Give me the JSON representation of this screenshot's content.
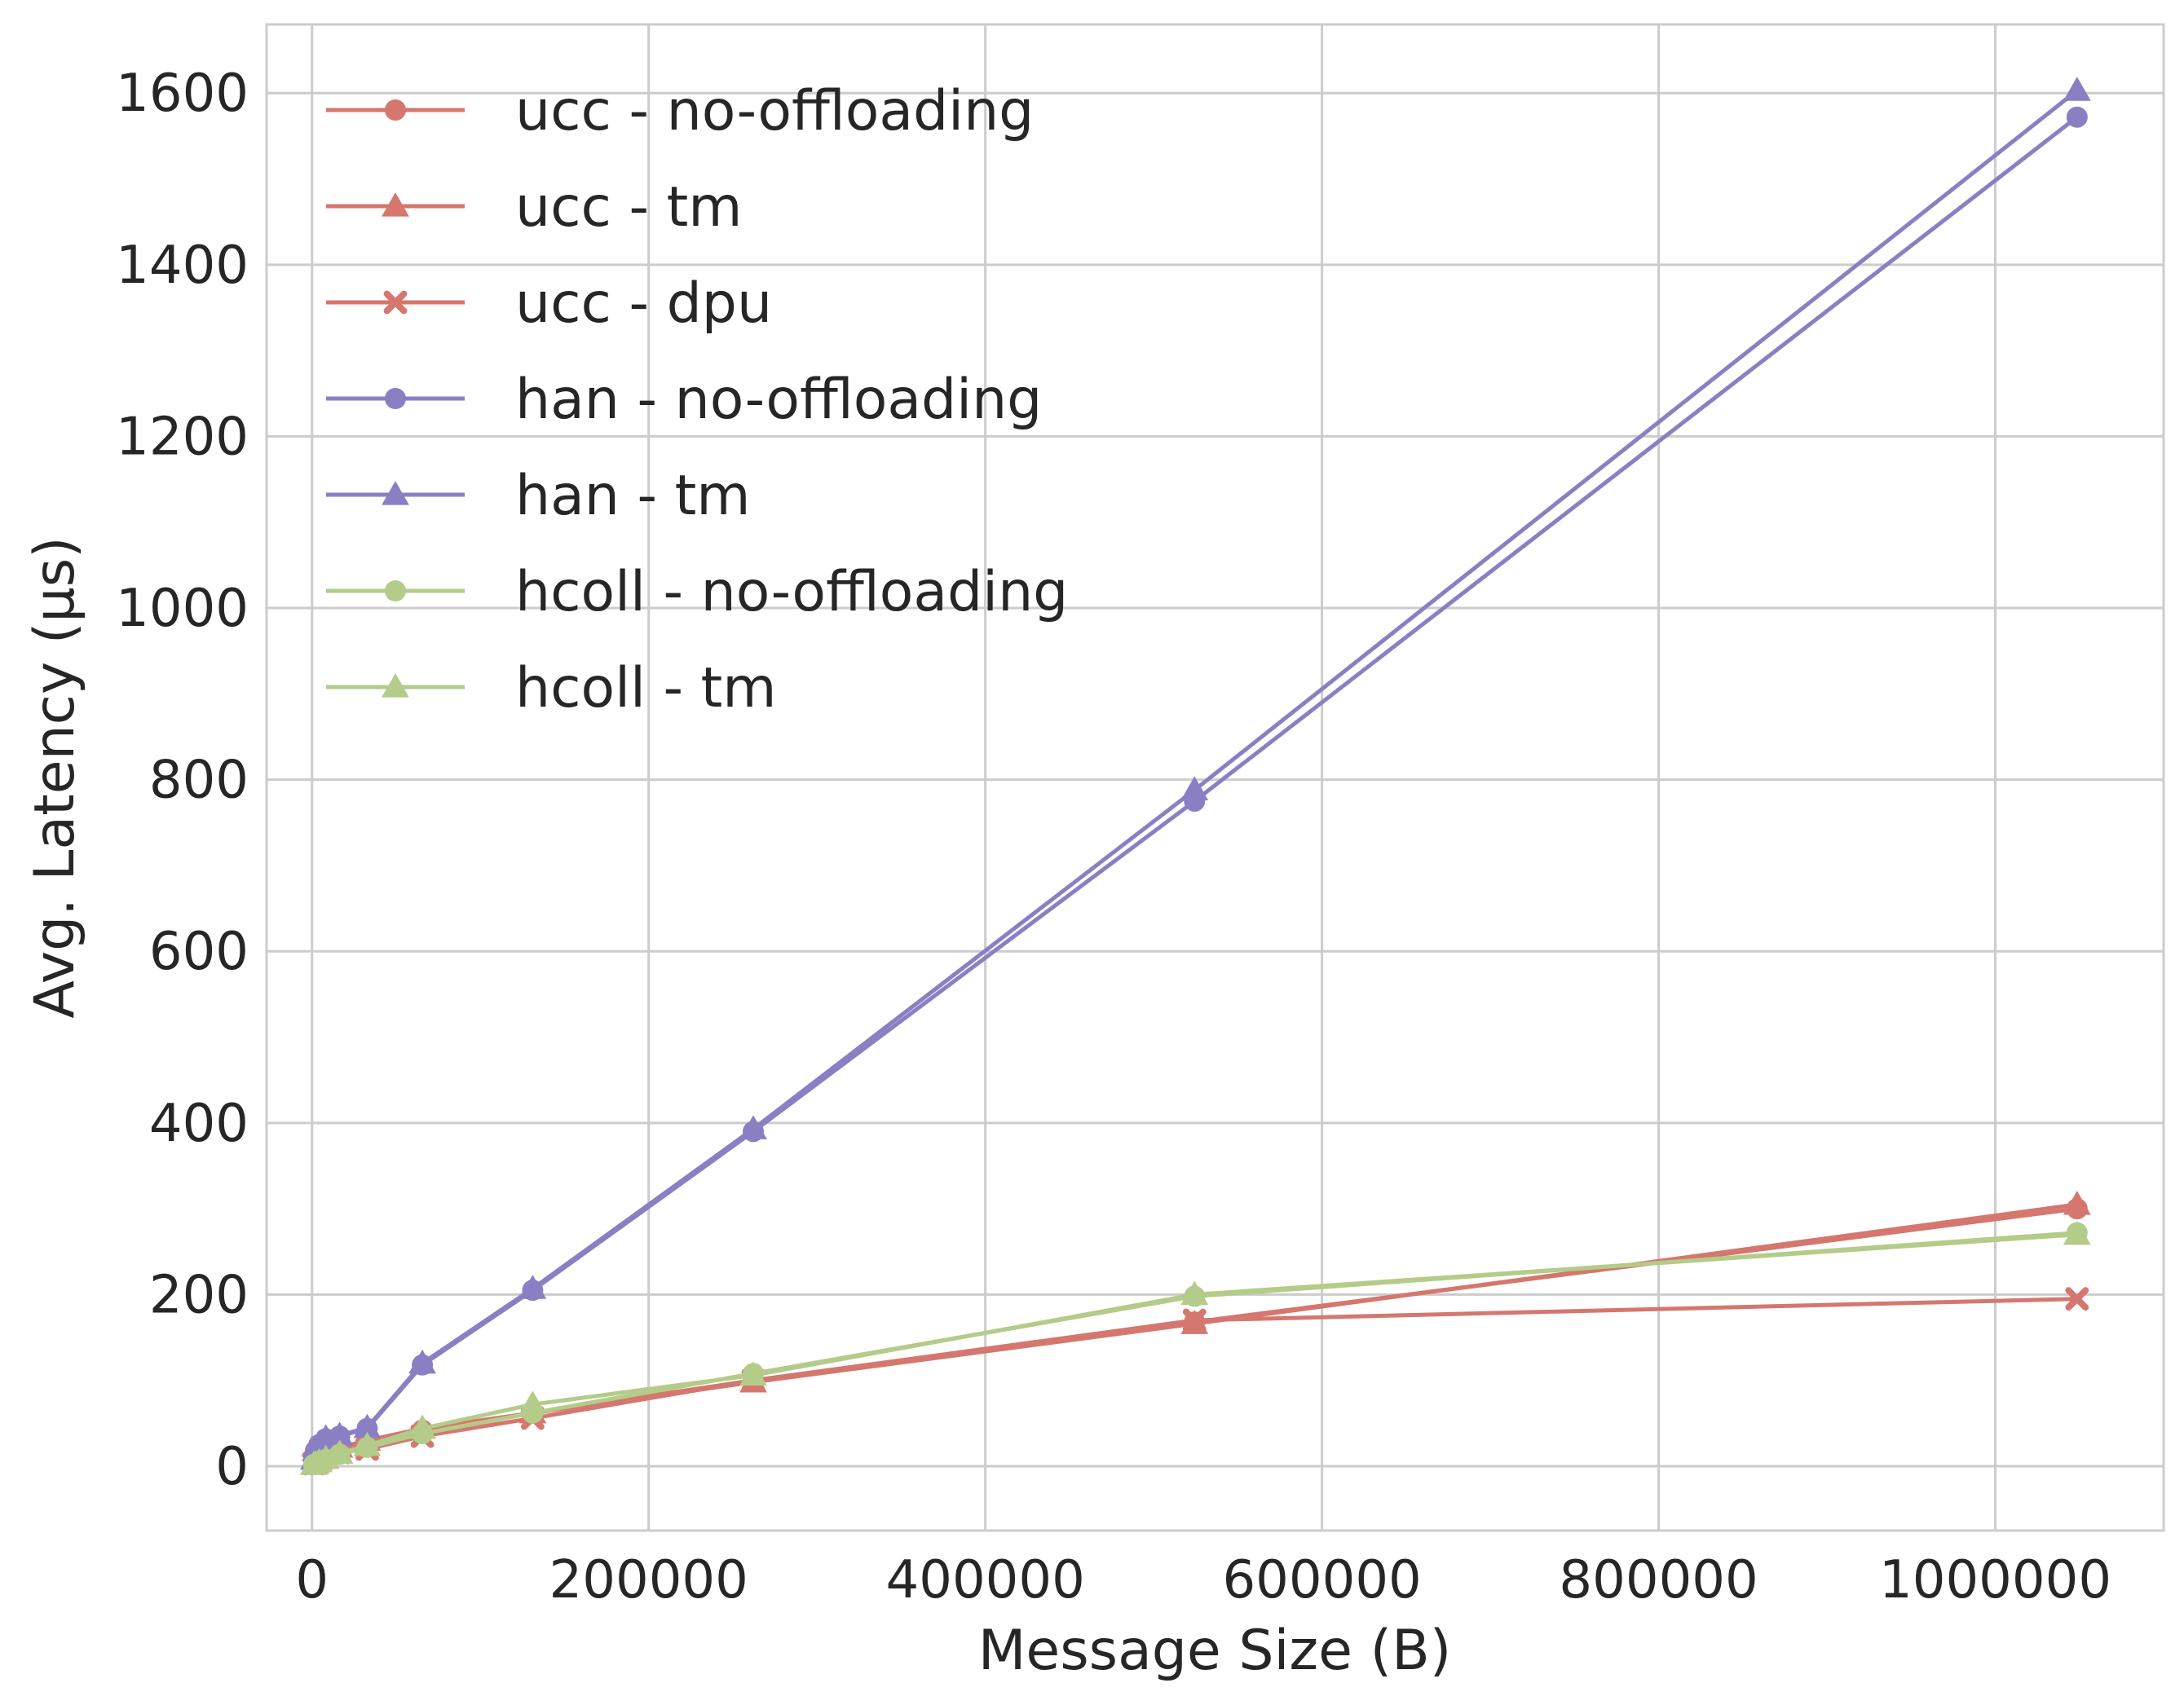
{
  "chart_data": {
    "type": "line",
    "title": "",
    "xlabel": "Message Size (B)",
    "ylabel": "Avg. Latency (μs)",
    "xlim": [
      -27000,
      1100000
    ],
    "ylim": [
      -75,
      1680
    ],
    "xticks": [
      0,
      200000,
      400000,
      600000,
      800000,
      1000000
    ],
    "xtick_labels": [
      "0",
      "200000",
      "400000",
      "600000",
      "800000",
      "1000000"
    ],
    "yticks": [
      0,
      200,
      400,
      600,
      800,
      1000,
      1200,
      1400,
      1600
    ],
    "ytick_labels": [
      "0",
      "200",
      "400",
      "600",
      "800",
      "1000",
      "1200",
      "1400",
      "1600"
    ],
    "grid": true,
    "legend_position": "top-left",
    "series": [
      {
        "name": "ucc - no-offloading",
        "color": "#d5776e",
        "marker": "circle",
        "x": [
          1024,
          2048,
          4096,
          8192,
          16384,
          32768,
          65536,
          131072,
          262144,
          524288,
          1048576
        ],
        "y": [
          2,
          4,
          7,
          12,
          20,
          28,
          42,
          62,
          100,
          168,
          300
        ]
      },
      {
        "name": "ucc - tm",
        "color": "#d5776e",
        "marker": "triangle",
        "x": [
          1024,
          2048,
          4096,
          8192,
          16384,
          32768,
          65536,
          131072,
          262144,
          524288,
          1048576
        ],
        "y": [
          2,
          4,
          8,
          14,
          22,
          30,
          44,
          62,
          98,
          166,
          305
        ]
      },
      {
        "name": "ucc - dpu",
        "color": "#d5776e",
        "marker": "x",
        "x": [
          1024,
          2048,
          4096,
          8192,
          16384,
          32768,
          65536,
          131072,
          262144,
          524288,
          1048576
        ],
        "y": [
          3,
          5,
          8,
          12,
          16,
          20,
          35,
          56,
          100,
          170,
          195
        ]
      },
      {
        "name": "han - no-offloading",
        "color": "#8b7fc4",
        "marker": "circle",
        "x": [
          1024,
          2048,
          4096,
          8192,
          16384,
          32768,
          65536,
          131072,
          262144,
          524288,
          1048576
        ],
        "y": [
          8,
          18,
          25,
          32,
          35,
          44,
          118,
          205,
          390,
          775,
          1572
        ]
      },
      {
        "name": "han - tm",
        "color": "#8b7fc4",
        "marker": "triangle",
        "x": [
          1024,
          2048,
          4096,
          8192,
          16384,
          32768,
          65536,
          131072,
          262144,
          524288,
          1048576
        ],
        "y": [
          8,
          18,
          26,
          33,
          36,
          45,
          120,
          207,
          393,
          788,
          1603
        ]
      },
      {
        "name": "hcoll - no-offloading",
        "color": "#b3cc89",
        "marker": "circle",
        "x": [
          1024,
          2048,
          4096,
          8192,
          16384,
          32768,
          65536,
          131072,
          262144,
          524288,
          1048576
        ],
        "y": [
          2,
          3,
          5,
          8,
          14,
          22,
          38,
          62,
          108,
          198,
          272
        ]
      },
      {
        "name": "hcoll - tm",
        "color": "#b3cc89",
        "marker": "triangle",
        "x": [
          1024,
          2048,
          4096,
          8192,
          16384,
          32768,
          65536,
          131072,
          262144,
          524288,
          1048576
        ],
        "y": [
          2,
          3,
          5,
          9,
          15,
          24,
          44,
          72,
          106,
          200,
          270
        ]
      }
    ]
  }
}
